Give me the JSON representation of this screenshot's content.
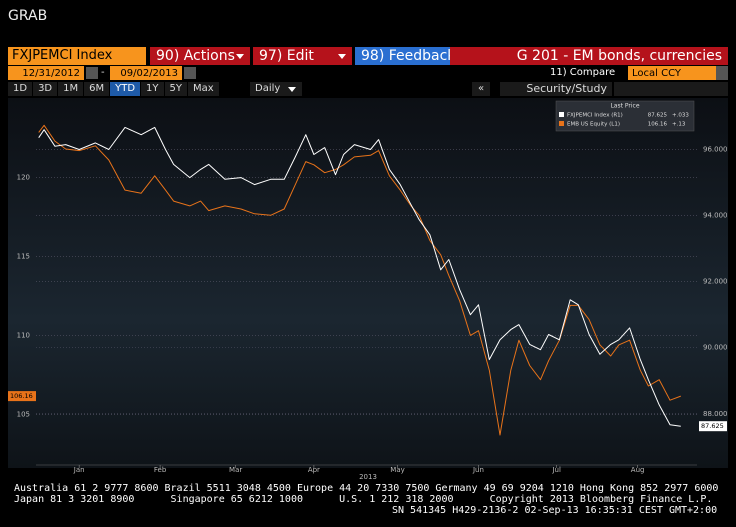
{
  "window_title": "GRAB",
  "toolbar": {
    "security": "FXJPEMCI Index",
    "actions": "90) Actions",
    "edit": "97) Edit",
    "feedback": "98) Feedback",
    "function": "G 201 - EM bonds, currencies"
  },
  "range": {
    "start": "12/31/2012",
    "separator": "-",
    "end": "09/02/2013",
    "compare": "11) Compare",
    "currency": "Local CCY"
  },
  "periods": [
    "1D",
    "3D",
    "1M",
    "6M",
    "YTD",
    "1Y",
    "5Y",
    "Max"
  ],
  "selected_period": "YTD",
  "frequency": "Daily",
  "collapse": "«",
  "security_study": "Security/Study",
  "chart_data": {
    "type": "line",
    "legend_title": "Last Price",
    "year_label": "2013",
    "x": [
      1,
      3,
      7,
      11,
      16,
      22,
      27,
      33,
      39,
      44,
      48,
      51,
      57,
      61,
      64,
      70,
      76,
      81,
      87,
      92,
      96,
      100,
      103,
      107,
      111,
      114,
      118,
      124,
      127,
      131,
      135,
      139,
      142,
      146,
      150,
      153,
      157,
      161,
      164,
      168,
      172,
      176,
      179,
      183,
      187,
      190,
      194,
      198,
      201,
      205,
      209,
      213,
      216,
      220,
      224,
      227,
      231,
      235,
      239
    ],
    "xlim": [
      0,
      245
    ],
    "xticks": [
      {
        "value": 16,
        "label": "Jan"
      },
      {
        "value": 46,
        "label": "Feb"
      },
      {
        "value": 74,
        "label": "Mar"
      },
      {
        "value": 103,
        "label": "Apr"
      },
      {
        "value": 134,
        "label": "May"
      },
      {
        "value": 164,
        "label": "Jun"
      },
      {
        "value": 193,
        "label": "Jul"
      },
      {
        "value": 223,
        "label": "Aug"
      }
    ],
    "ylim": [
      101.8,
      124.9
    ],
    "yticks": [
      105,
      110,
      115,
      120
    ],
    "y2lim": [
      86.45,
      97.5
    ],
    "y2ticks": [
      {
        "value": 88,
        "label": "88.000"
      },
      {
        "value": 90,
        "label": "90.000"
      },
      {
        "value": 92,
        "label": "92.000"
      },
      {
        "value": 94,
        "label": "94.000"
      },
      {
        "value": 96,
        "label": "96.000"
      }
    ],
    "grid": true,
    "series": [
      {
        "name": "FXJPEMCI Index (R1)",
        "color": "#ffffff",
        "axis": "y2",
        "change": "+.033",
        "values": [
          96.36,
          96.6,
          96.1,
          96.15,
          96.0,
          96.2,
          96.0,
          96.67,
          96.45,
          96.67,
          96.0,
          95.55,
          95.15,
          95.4,
          95.55,
          95.1,
          95.15,
          94.94,
          95.1,
          95.1,
          95.76,
          96.45,
          95.85,
          96.06,
          95.24,
          95.85,
          96.15,
          96.0,
          96.3,
          95.4,
          94.94,
          94.33,
          93.88,
          93.42,
          92.36,
          92.67,
          91.76,
          91.0,
          91.3,
          89.64,
          90.24,
          90.55,
          90.7,
          90.1,
          89.94,
          90.4,
          90.24,
          91.45,
          91.3,
          90.4,
          89.8,
          90.1,
          90.24,
          90.6,
          89.64,
          89.03,
          88.27,
          87.67,
          87.625
        ]
      },
      {
        "name": "EMB US Equity (L1)",
        "color": "#e8731a",
        "axis": "y",
        "change": "+.13",
        "values": [
          122.85,
          123.3,
          122.3,
          121.8,
          121.7,
          122.0,
          121.1,
          119.2,
          119.0,
          120.1,
          119.2,
          118.5,
          118.2,
          118.5,
          117.9,
          118.2,
          118.0,
          117.7,
          117.6,
          118.0,
          119.5,
          121.0,
          120.8,
          120.3,
          120.5,
          120.8,
          121.3,
          121.4,
          121.7,
          120.1,
          119.2,
          118.2,
          117.6,
          116.0,
          115.1,
          113.8,
          112.2,
          110.0,
          110.3,
          107.8,
          103.7,
          107.8,
          109.7,
          108.1,
          107.2,
          108.4,
          109.7,
          111.9,
          111.9,
          111.0,
          109.4,
          108.7,
          109.4,
          109.7,
          107.8,
          106.8,
          107.2,
          105.9,
          106.16
        ]
      }
    ]
  },
  "footer": [
    "Australia 61 2 9777 8600 Brazil 5511 3048 4500 Europe 44 20 7330 7500 Germany 49 69 9204 1210 Hong Kong 852 2977 6000",
    "Japan 81 3 3201 8900      Singapore 65 6212 1000      U.S. 1 212 318 2000      Copyright 2013 Bloomberg Finance L.P.",
    "SN 541345 H429-2136-2 02-Sep-13 16:35:31 CEST GMT+2:00"
  ]
}
